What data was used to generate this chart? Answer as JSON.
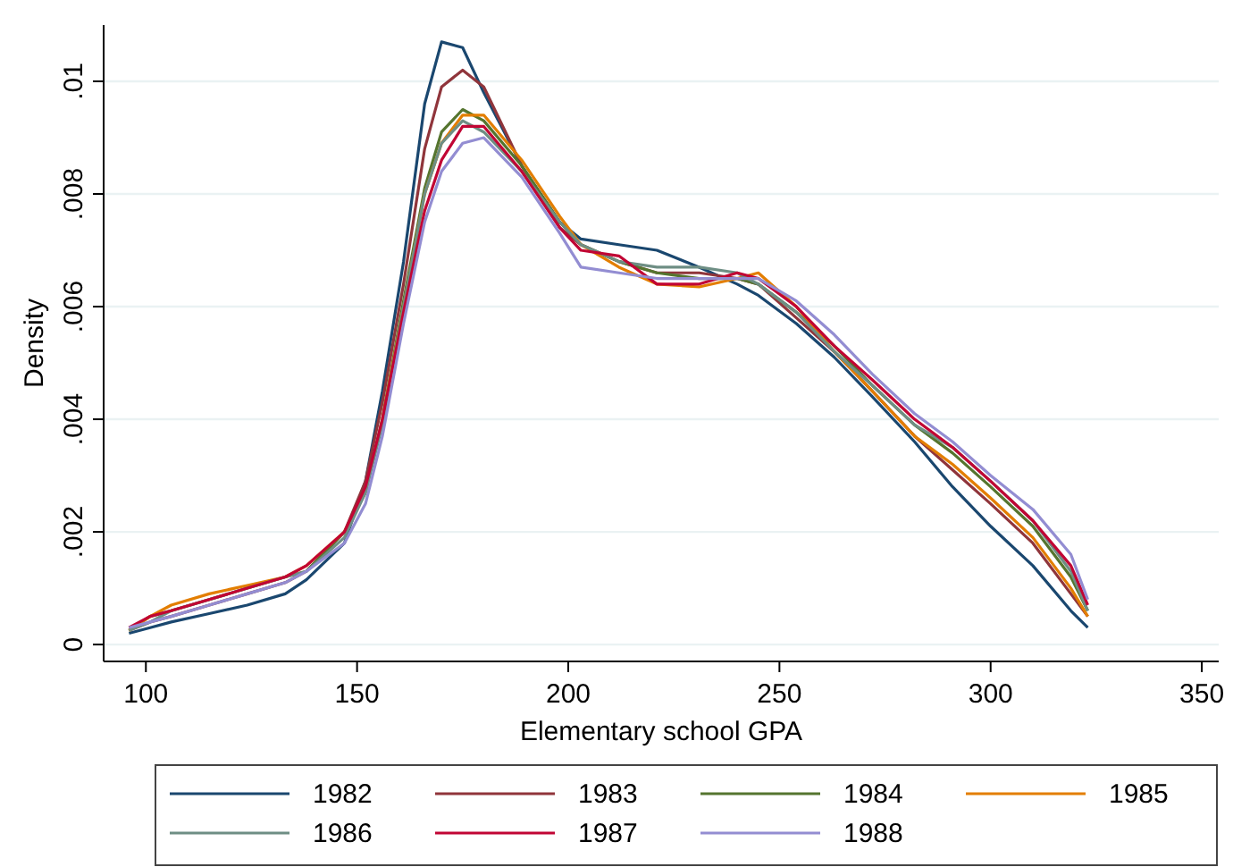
{
  "chart_data": {
    "type": "line",
    "xlabel": "Elementary school GPA",
    "ylabel": "Density",
    "x": [
      96,
      101,
      106,
      115,
      124,
      133,
      138,
      147,
      152,
      156,
      161,
      166,
      170,
      175,
      180,
      189,
      198,
      203,
      212,
      221,
      231,
      240,
      245,
      254,
      263,
      272,
      282,
      291,
      300,
      310,
      319,
      323
    ],
    "series": [
      {
        "name": "1982",
        "color": "#1a476f",
        "values": [
          0.0002,
          0.0003,
          0.0004,
          0.00055,
          0.0007,
          0.0009,
          0.00115,
          0.0018,
          0.0029,
          0.0045,
          0.0068,
          0.0096,
          0.0107,
          0.0106,
          0.0098,
          0.0085,
          0.0075,
          0.0072,
          0.0071,
          0.007,
          0.0067,
          0.0064,
          0.0062,
          0.0057,
          0.0051,
          0.0044,
          0.0036,
          0.0028,
          0.0021,
          0.0014,
          0.0006,
          0.0003
        ]
      },
      {
        "name": "1983",
        "color": "#90353b",
        "values": [
          0.00025,
          0.0004,
          0.0005,
          0.0007,
          0.0009,
          0.0011,
          0.0013,
          0.002,
          0.0029,
          0.0043,
          0.0064,
          0.0088,
          0.0099,
          0.0102,
          0.0099,
          0.0085,
          0.0074,
          0.0071,
          0.0068,
          0.0066,
          0.0066,
          0.0065,
          0.0064,
          0.0058,
          0.0052,
          0.0045,
          0.0037,
          0.0031,
          0.0025,
          0.0018,
          0.0009,
          0.0005
        ]
      },
      {
        "name": "1984",
        "color": "#55752f",
        "values": [
          0.00025,
          0.0005,
          0.0006,
          0.0008,
          0.001,
          0.0012,
          0.0013,
          0.002,
          0.0027,
          0.004,
          0.0061,
          0.0081,
          0.0091,
          0.0095,
          0.0093,
          0.0085,
          0.0075,
          0.0071,
          0.0068,
          0.0066,
          0.0065,
          0.0065,
          0.0064,
          0.0059,
          0.0053,
          0.0046,
          0.0039,
          0.0034,
          0.0028,
          0.0021,
          0.0012,
          0.0006
        ]
      },
      {
        "name": "1985",
        "color": "#e37e00",
        "values": [
          0.00025,
          0.0005,
          0.0007,
          0.0009,
          0.00105,
          0.0012,
          0.0014,
          0.002,
          0.0027,
          0.004,
          0.006,
          0.008,
          0.0089,
          0.0094,
          0.0094,
          0.0086,
          0.0076,
          0.0071,
          0.0067,
          0.0064,
          0.00635,
          0.0065,
          0.0066,
          0.006,
          0.0052,
          0.0045,
          0.0037,
          0.0032,
          0.0026,
          0.0019,
          0.001,
          0.0005
        ]
      },
      {
        "name": "1986",
        "color": "#6e8e84",
        "values": [
          0.00025,
          0.0004,
          0.0006,
          0.0008,
          0.001,
          0.0012,
          0.0013,
          0.0019,
          0.0027,
          0.0039,
          0.006,
          0.008,
          0.0089,
          0.0093,
          0.0091,
          0.0084,
          0.0075,
          0.0071,
          0.0068,
          0.0067,
          0.0067,
          0.0066,
          0.0064,
          0.0059,
          0.0052,
          0.0046,
          0.0039,
          0.0035,
          0.0029,
          0.0022,
          0.0013,
          0.0006
        ]
      },
      {
        "name": "1987",
        "color": "#c10534",
        "values": [
          0.0003,
          0.0005,
          0.0006,
          0.0008,
          0.001,
          0.0012,
          0.0014,
          0.002,
          0.0028,
          0.004,
          0.0059,
          0.0077,
          0.0086,
          0.0092,
          0.0092,
          0.0084,
          0.0074,
          0.007,
          0.0069,
          0.0064,
          0.0064,
          0.0066,
          0.0065,
          0.006,
          0.0053,
          0.0047,
          0.004,
          0.0035,
          0.0029,
          0.0022,
          0.0014,
          0.0007
        ]
      },
      {
        "name": "1988",
        "color": "#938dd2",
        "values": [
          0.0003,
          0.0004,
          0.0005,
          0.0007,
          0.0009,
          0.0011,
          0.0013,
          0.0018,
          0.0025,
          0.0037,
          0.0057,
          0.0075,
          0.0084,
          0.0089,
          0.009,
          0.0083,
          0.0073,
          0.0067,
          0.0066,
          0.0065,
          0.0065,
          0.0065,
          0.0065,
          0.0061,
          0.0055,
          0.0048,
          0.0041,
          0.0036,
          0.003,
          0.0024,
          0.0016,
          0.0008
        ]
      }
    ],
    "xlim": [
      90,
      354
    ],
    "ylim": [
      -0.0003,
      0.011
    ],
    "xticks": [
      100,
      150,
      200,
      250,
      300,
      350
    ],
    "yticks": [
      0,
      {
        "value": 0.002,
        "label": ".002"
      },
      {
        "value": 0.004,
        "label": ".004"
      },
      {
        "value": 0.006,
        "label": ".006"
      },
      {
        "value": 0.008,
        "label": ".008"
      },
      {
        "value": 0.01,
        "label": ".01"
      }
    ],
    "grid": "y",
    "legend": "bottom",
    "marker": "none",
    "line_style": "solid"
  }
}
